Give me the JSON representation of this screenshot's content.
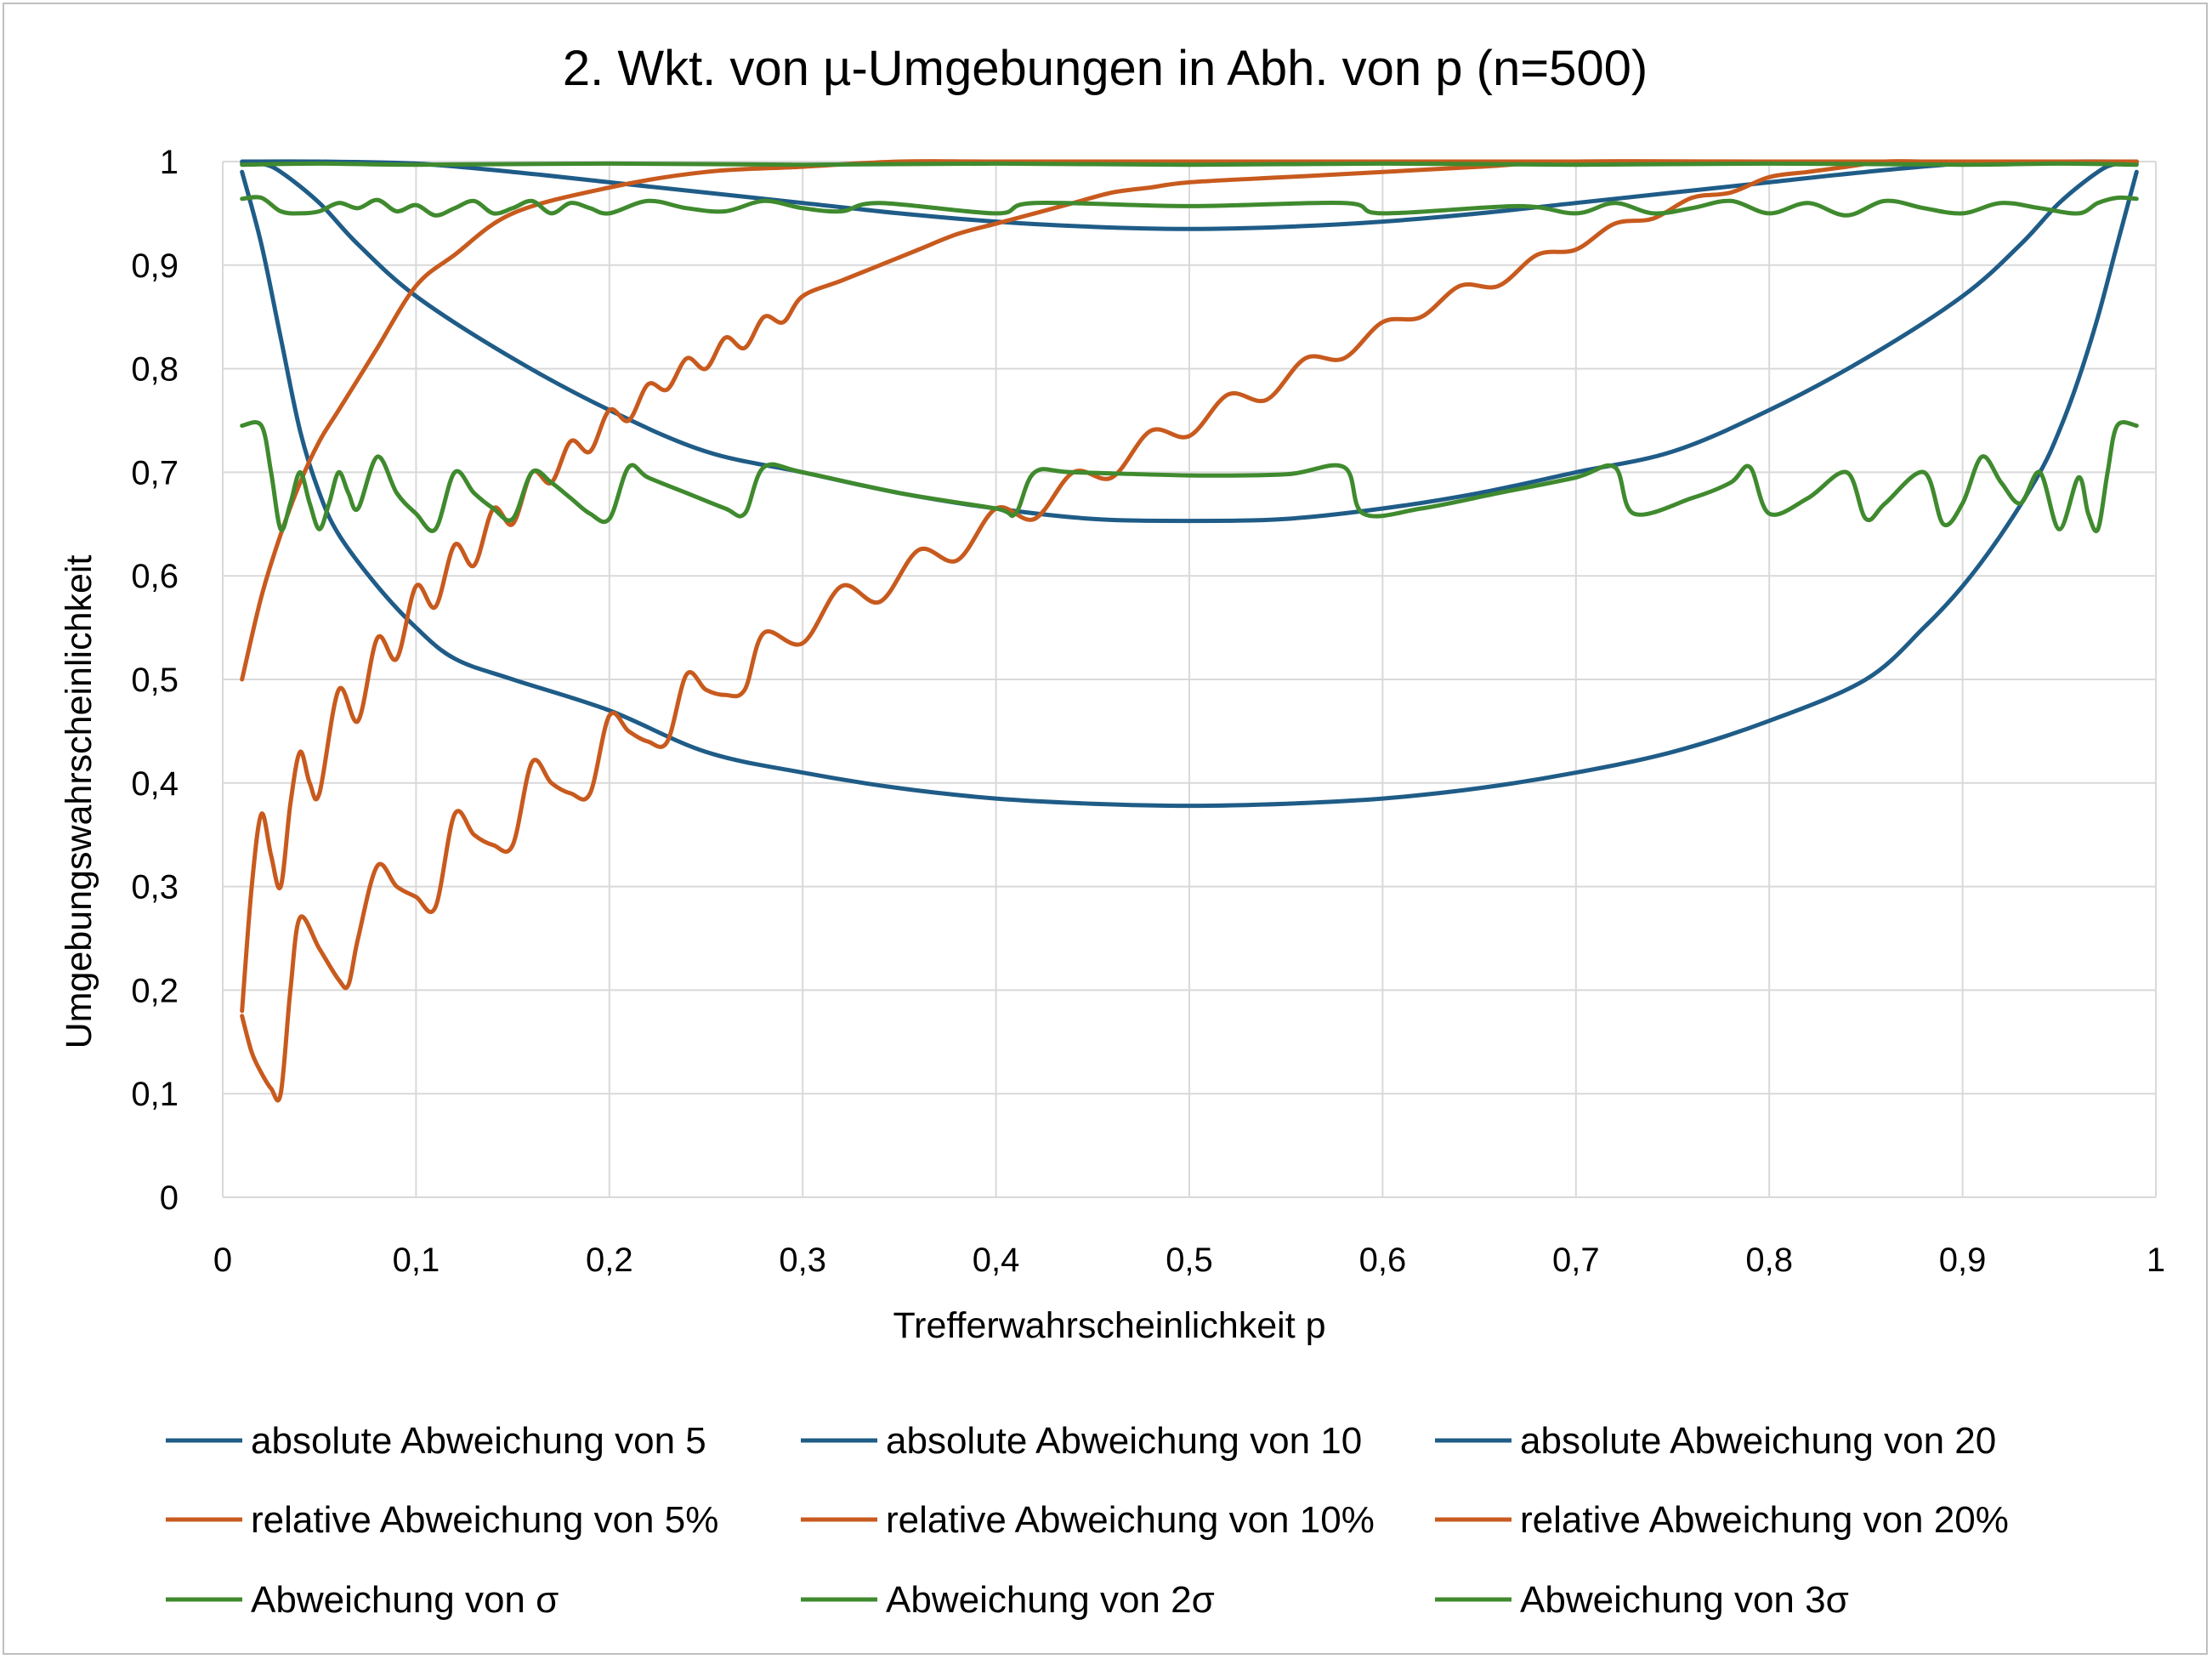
{
  "chart_data": {
    "type": "line",
    "title": "2. Wkt. von µ-Umgebungen in Abh. von p (n=500)",
    "xlabel": "Trefferwahrscheinlichkeit p",
    "ylabel": "Umgebungswahrscheinlichkeit",
    "xlim": [
      0,
      1
    ],
    "ylim": [
      0,
      1
    ],
    "xticks": [
      "0",
      "0,1",
      "0,2",
      "0,3",
      "0,4",
      "0,5",
      "0,6",
      "0,7",
      "0,8",
      "0,9",
      "1"
    ],
    "yticks": [
      "0",
      "0,1",
      "0,2",
      "0,3",
      "0,4",
      "0,5",
      "0,6",
      "0,7",
      "0,8",
      "0,9",
      "1"
    ],
    "grid": true,
    "legend_position": "bottom",
    "colors": {
      "blue": "#1f5c87",
      "orange": "#c85a1e",
      "green": "#3f8a2e",
      "grid": "#d9d9d9"
    },
    "series": [
      {
        "name": "absolute Abweichung von 5",
        "color": "#1f5c87",
        "x": [
          0.01,
          0.02,
          0.03,
          0.04,
          0.05,
          0.06,
          0.08,
          0.1,
          0.12,
          0.15,
          0.2,
          0.25,
          0.3,
          0.35,
          0.4,
          0.45,
          0.5,
          0.55,
          0.6,
          0.65,
          0.7,
          0.75,
          0.8,
          0.85,
          0.88,
          0.9,
          0.92,
          0.94,
          0.95,
          0.96,
          0.97,
          0.98,
          0.99
        ],
        "y": [
          0.99,
          0.92,
          0.83,
          0.74,
          0.68,
          0.64,
          0.59,
          0.55,
          0.52,
          0.5,
          0.47,
          0.43,
          0.41,
          0.395,
          0.385,
          0.38,
          0.378,
          0.38,
          0.385,
          0.395,
          0.41,
          0.43,
          0.46,
          0.5,
          0.55,
          0.59,
          0.64,
          0.7,
          0.74,
          0.79,
          0.85,
          0.92,
          0.99
        ]
      },
      {
        "name": "absolute Abweichung von 10",
        "color": "#1f5c87",
        "x": [
          0.01,
          0.02,
          0.03,
          0.05,
          0.07,
          0.1,
          0.15,
          0.2,
          0.25,
          0.3,
          0.35,
          0.4,
          0.45,
          0.5,
          0.55,
          0.6,
          0.65,
          0.7,
          0.75,
          0.8,
          0.85,
          0.9,
          0.93,
          0.95,
          0.97,
          0.98,
          0.99
        ],
        "y": [
          0.998,
          0.998,
          0.99,
          0.96,
          0.92,
          0.87,
          0.81,
          0.76,
          0.72,
          0.7,
          0.68,
          0.665,
          0.655,
          0.653,
          0.655,
          0.665,
          0.68,
          0.7,
          0.72,
          0.76,
          0.81,
          0.87,
          0.92,
          0.96,
          0.99,
          0.998,
          0.998
        ]
      },
      {
        "name": "absolute Abweichung von 20",
        "color": "#1f5c87",
        "x": [
          0.01,
          0.05,
          0.1,
          0.15,
          0.2,
          0.25,
          0.3,
          0.35,
          0.4,
          0.45,
          0.5,
          0.55,
          0.6,
          0.65,
          0.7,
          0.75,
          0.8,
          0.85,
          0.9,
          0.95,
          0.99
        ],
        "y": [
          1.0,
          1.0,
          0.998,
          0.99,
          0.98,
          0.97,
          0.96,
          0.95,
          0.942,
          0.937,
          0.935,
          0.937,
          0.942,
          0.95,
          0.96,
          0.97,
          0.98,
          0.99,
          0.998,
          1.0,
          1.0
        ]
      },
      {
        "name": "relative Abweichung von 5%",
        "color": "#c85a1e",
        "x": [
          0.01,
          0.015,
          0.02,
          0.025,
          0.03,
          0.035,
          0.04,
          0.05,
          0.06,
          0.065,
          0.07,
          0.08,
          0.09,
          0.1,
          0.11,
          0.12,
          0.13,
          0.14,
          0.15,
          0.16,
          0.17,
          0.18,
          0.19,
          0.2,
          0.21,
          0.22,
          0.23,
          0.24,
          0.25,
          0.26,
          0.27,
          0.28,
          0.3,
          0.32,
          0.34,
          0.36,
          0.38,
          0.4,
          0.42,
          0.44,
          0.46,
          0.48,
          0.5,
          0.52,
          0.54,
          0.56,
          0.58,
          0.6,
          0.62,
          0.64,
          0.66,
          0.68,
          0.7,
          0.72,
          0.74,
          0.76,
          0.78,
          0.8,
          0.82,
          0.84,
          0.86,
          0.88,
          0.9,
          0.95,
          0.99
        ],
        "y": [
          0.175,
          0.14,
          0.12,
          0.105,
          0.1,
          0.2,
          0.27,
          0.24,
          0.21,
          0.205,
          0.25,
          0.32,
          0.3,
          0.29,
          0.28,
          0.37,
          0.35,
          0.34,
          0.34,
          0.42,
          0.4,
          0.39,
          0.39,
          0.465,
          0.45,
          0.44,
          0.44,
          0.505,
          0.49,
          0.485,
          0.49,
          0.545,
          0.535,
          0.59,
          0.575,
          0.625,
          0.615,
          0.665,
          0.655,
          0.7,
          0.695,
          0.74,
          0.735,
          0.775,
          0.77,
          0.81,
          0.81,
          0.845,
          0.85,
          0.88,
          0.88,
          0.91,
          0.915,
          0.94,
          0.945,
          0.965,
          0.97,
          0.985,
          0.99,
          0.995,
          1.0,
          1.0,
          1.0,
          1.0,
          1.0
        ]
      },
      {
        "name": "relative Abweichung von 10%",
        "color": "#c85a1e",
        "x": [
          0.01,
          0.015,
          0.02,
          0.025,
          0.03,
          0.035,
          0.04,
          0.045,
          0.05,
          0.06,
          0.07,
          0.08,
          0.09,
          0.1,
          0.11,
          0.12,
          0.13,
          0.14,
          0.15,
          0.16,
          0.17,
          0.18,
          0.19,
          0.2,
          0.21,
          0.22,
          0.23,
          0.24,
          0.25,
          0.26,
          0.27,
          0.28,
          0.29,
          0.3,
          0.32,
          0.34,
          0.36,
          0.38,
          0.4,
          0.42,
          0.44,
          0.46,
          0.48,
          0.5,
          0.55,
          0.6,
          0.65,
          0.7,
          0.8,
          0.99
        ],
        "y": [
          0.18,
          0.3,
          0.37,
          0.33,
          0.3,
          0.38,
          0.43,
          0.4,
          0.39,
          0.49,
          0.46,
          0.54,
          0.52,
          0.59,
          0.57,
          0.63,
          0.61,
          0.665,
          0.65,
          0.7,
          0.69,
          0.73,
          0.72,
          0.76,
          0.75,
          0.785,
          0.78,
          0.81,
          0.8,
          0.83,
          0.82,
          0.85,
          0.845,
          0.87,
          0.885,
          0.9,
          0.915,
          0.93,
          0.94,
          0.95,
          0.96,
          0.97,
          0.975,
          0.98,
          0.985,
          0.99,
          0.995,
          1.0,
          1.0,
          1.0
        ]
      },
      {
        "name": "relative Abweichung von 20%",
        "color": "#c85a1e",
        "x": [
          0.01,
          0.02,
          0.03,
          0.04,
          0.05,
          0.06,
          0.07,
          0.08,
          0.1,
          0.12,
          0.15,
          0.2,
          0.25,
          0.3,
          0.35,
          0.4,
          0.5,
          0.6,
          0.8,
          0.99
        ],
        "y": [
          0.5,
          0.58,
          0.64,
          0.69,
          0.73,
          0.76,
          0.79,
          0.82,
          0.88,
          0.91,
          0.95,
          0.975,
          0.99,
          0.995,
          1.0,
          1.0,
          1.0,
          1.0,
          1.0,
          1.0
        ]
      },
      {
        "name": "Abweichung von σ",
        "color": "#3f8a2e",
        "x": [
          0.01,
          0.02,
          0.025,
          0.03,
          0.035,
          0.04,
          0.045,
          0.05,
          0.055,
          0.06,
          0.065,
          0.07,
          0.08,
          0.09,
          0.1,
          0.11,
          0.12,
          0.13,
          0.14,
          0.15,
          0.16,
          0.17,
          0.18,
          0.19,
          0.2,
          0.21,
          0.22,
          0.24,
          0.26,
          0.27,
          0.28,
          0.3,
          0.35,
          0.4,
          0.41,
          0.42,
          0.44,
          0.5,
          0.55,
          0.58,
          0.59,
          0.62,
          0.66,
          0.7,
          0.72,
          0.73,
          0.76,
          0.78,
          0.79,
          0.8,
          0.82,
          0.84,
          0.85,
          0.86,
          0.88,
          0.89,
          0.9,
          0.91,
          0.92,
          0.93,
          0.94,
          0.95,
          0.96,
          0.965,
          0.97,
          0.975,
          0.98,
          0.99
        ],
        "y": [
          0.745,
          0.745,
          0.7,
          0.645,
          0.67,
          0.7,
          0.67,
          0.645,
          0.67,
          0.7,
          0.68,
          0.665,
          0.715,
          0.68,
          0.66,
          0.645,
          0.7,
          0.68,
          0.665,
          0.655,
          0.7,
          0.69,
          0.675,
          0.66,
          0.655,
          0.705,
          0.695,
          0.68,
          0.665,
          0.66,
          0.705,
          0.7,
          0.68,
          0.665,
          0.66,
          0.7,
          0.7,
          0.697,
          0.698,
          0.705,
          0.66,
          0.665,
          0.68,
          0.695,
          0.705,
          0.66,
          0.675,
          0.69,
          0.705,
          0.66,
          0.675,
          0.7,
          0.655,
          0.67,
          0.7,
          0.65,
          0.67,
          0.715,
          0.69,
          0.67,
          0.7,
          0.645,
          0.695,
          0.66,
          0.645,
          0.7,
          0.745,
          0.745
        ]
      },
      {
        "name": "Abweichung von 2σ",
        "color": "#3f8a2e",
        "x": [
          0.01,
          0.02,
          0.03,
          0.04,
          0.05,
          0.06,
          0.07,
          0.08,
          0.09,
          0.1,
          0.11,
          0.12,
          0.13,
          0.14,
          0.15,
          0.16,
          0.17,
          0.18,
          0.19,
          0.2,
          0.22,
          0.24,
          0.26,
          0.28,
          0.3,
          0.32,
          0.34,
          0.4,
          0.42,
          0.5,
          0.58,
          0.6,
          0.67,
          0.7,
          0.72,
          0.74,
          0.76,
          0.78,
          0.8,
          0.82,
          0.84,
          0.86,
          0.88,
          0.9,
          0.92,
          0.94,
          0.96,
          0.97,
          0.98,
          0.99
        ],
        "y": [
          0.964,
          0.965,
          0.952,
          0.95,
          0.952,
          0.96,
          0.955,
          0.963,
          0.952,
          0.958,
          0.948,
          0.955,
          0.962,
          0.95,
          0.955,
          0.962,
          0.95,
          0.96,
          0.955,
          0.95,
          0.962,
          0.955,
          0.952,
          0.962,
          0.955,
          0.952,
          0.96,
          0.95,
          0.96,
          0.957,
          0.96,
          0.95,
          0.957,
          0.95,
          0.96,
          0.95,
          0.955,
          0.962,
          0.95,
          0.96,
          0.948,
          0.962,
          0.955,
          0.95,
          0.96,
          0.955,
          0.95,
          0.96,
          0.965,
          0.964
        ]
      },
      {
        "name": "Abweichung von 3σ",
        "color": "#3f8a2e",
        "x": [
          0.01,
          0.05,
          0.1,
          0.2,
          0.3,
          0.4,
          0.5,
          0.6,
          0.7,
          0.8,
          0.9,
          0.95,
          0.99
        ],
        "y": [
          0.997,
          0.998,
          0.997,
          0.998,
          0.997,
          0.998,
          0.997,
          0.998,
          0.997,
          0.998,
          0.997,
          0.998,
          0.997
        ]
      }
    ]
  }
}
